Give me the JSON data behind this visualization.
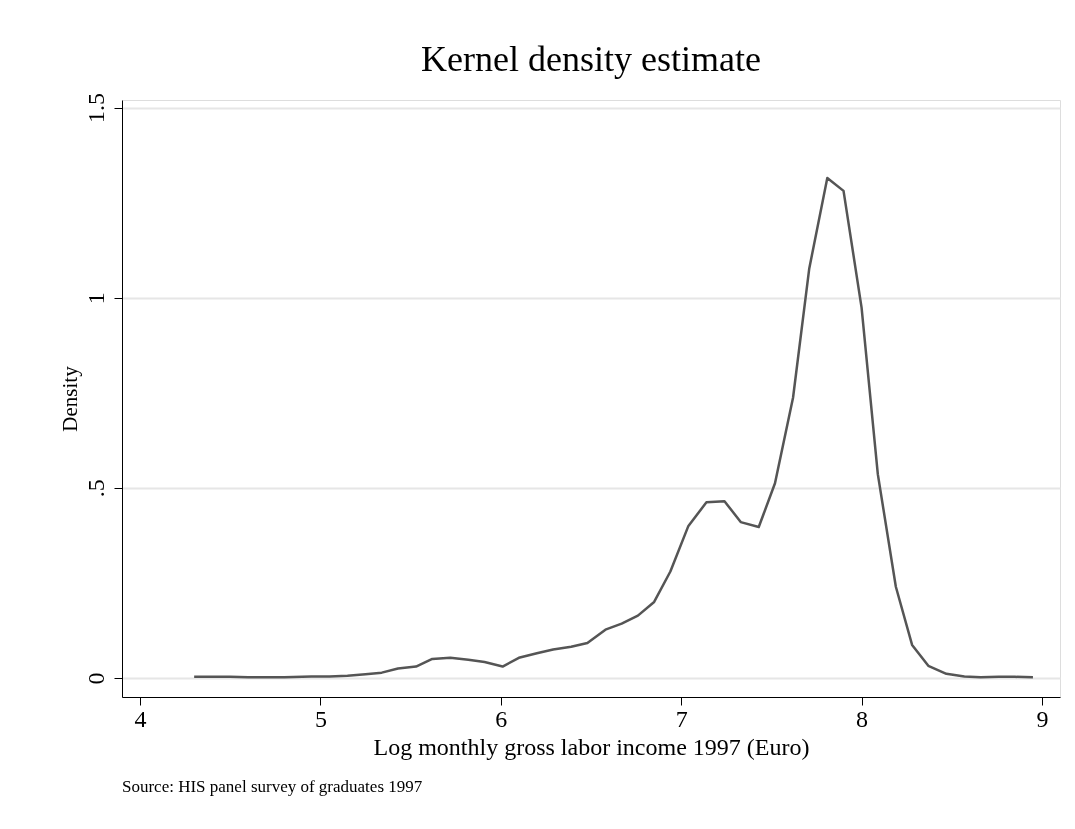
{
  "chart_data": {
    "type": "line",
    "title": "Kernel density estimate",
    "xlabel": "Log monthly gross labor income 1997 (Euro)",
    "ylabel": "Density",
    "annotations": [
      "Source: HIS panel survey of graduates 1997"
    ],
    "xlim": [
      3.9,
      9.1
    ],
    "ylim": [
      -0.05,
      1.52
    ],
    "xticks": [
      4,
      5,
      6,
      7,
      8,
      9
    ],
    "yticks": [
      {
        "value": 0,
        "label": "0"
      },
      {
        "value": 0.5,
        "label": ".5"
      },
      {
        "value": 1,
        "label": "1"
      },
      {
        "value": 1.5,
        "label": "1.5"
      }
    ],
    "grid": "y",
    "marker": "none",
    "line_style": "solid",
    "series": [
      {
        "color": "#555555",
        "x": [
          4.3,
          4.42,
          4.5,
          4.6,
          4.7,
          4.8,
          4.95,
          5.05,
          5.15,
          5.25,
          5.34,
          5.43,
          5.53,
          5.62,
          5.72,
          5.82,
          5.91,
          6.01,
          6.1,
          6.2,
          6.29,
          6.39,
          6.48,
          6.58,
          6.67,
          6.76,
          6.85,
          6.94,
          7.04,
          7.14,
          7.24,
          7.33,
          7.43,
          7.52,
          7.62,
          7.71,
          7.81,
          7.9,
          8.0,
          8.09,
          8.19,
          8.28,
          8.37,
          8.47,
          8.57,
          8.66,
          8.76,
          8.85,
          8.95
        ],
        "values": [
          0.003,
          0.003,
          0.003,
          0.002,
          0.002,
          0.002,
          0.004,
          0.004,
          0.006,
          0.01,
          0.014,
          0.025,
          0.03,
          0.05,
          0.053,
          0.048,
          0.042,
          0.03,
          0.053,
          0.065,
          0.075,
          0.082,
          0.092,
          0.127,
          0.143,
          0.164,
          0.2,
          0.28,
          0.4,
          0.462,
          0.465,
          0.41,
          0.397,
          0.512,
          0.737,
          1.077,
          1.315,
          1.281,
          0.974,
          0.536,
          0.24,
          0.087,
          0.032,
          0.011,
          0.004,
          0.002,
          0.003,
          0.003,
          0.002
        ]
      }
    ]
  }
}
